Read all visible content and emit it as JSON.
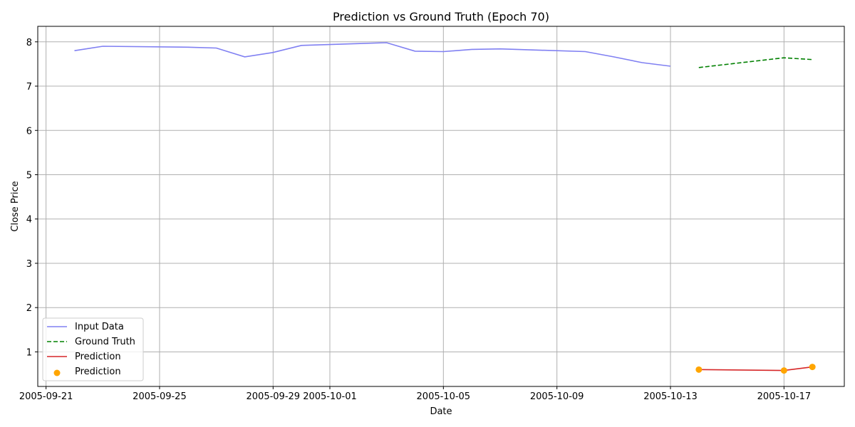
{
  "chart_data": {
    "type": "line",
    "title": "Prediction vs Ground Truth (Epoch 70)",
    "xlabel": "Date",
    "ylabel": "Close Price",
    "x_ticks": [
      "2005-09-21",
      "2005-09-25",
      "2005-09-29",
      "2005-10-01",
      "2005-10-05",
      "2005-10-09",
      "2005-10-13",
      "2005-10-17"
    ],
    "y_ticks": [
      1,
      2,
      3,
      4,
      5,
      6,
      7,
      8
    ],
    "xlim": [
      "2005-09-20T17:00",
      "2005-10-19T03:00"
    ],
    "ylim": [
      0.22,
      8.35
    ],
    "grid": true,
    "legend_position": "lower-left",
    "series": [
      {
        "name": "Input Data",
        "kind": "line",
        "color": "#8080f2",
        "style": "solid",
        "points": [
          [
            "2005-09-22",
            7.8
          ],
          [
            "2005-09-23",
            7.9
          ],
          [
            "2005-09-26",
            7.88
          ],
          [
            "2005-09-27",
            7.86
          ],
          [
            "2005-09-28",
            7.66
          ],
          [
            "2005-09-29",
            7.76
          ],
          [
            "2005-09-30",
            7.92
          ],
          [
            "2005-10-03",
            7.98
          ],
          [
            "2005-10-04",
            7.79
          ],
          [
            "2005-10-05",
            7.78
          ],
          [
            "2005-10-06",
            7.83
          ],
          [
            "2005-10-07",
            7.84
          ],
          [
            "2005-10-10",
            7.78
          ],
          [
            "2005-10-11",
            7.66
          ],
          [
            "2005-10-12",
            7.53
          ],
          [
            "2005-10-13",
            7.45
          ]
        ]
      },
      {
        "name": "Ground Truth",
        "kind": "line",
        "color": "#008000",
        "style": "dashed",
        "points": [
          [
            "2005-10-14",
            7.42
          ],
          [
            "2005-10-17",
            7.64
          ],
          [
            "2005-10-18",
            7.6
          ]
        ]
      },
      {
        "name": "Prediction",
        "kind": "line",
        "color": "#d62728",
        "style": "solid",
        "points": [
          [
            "2005-10-14",
            0.6
          ],
          [
            "2005-10-17",
            0.58
          ],
          [
            "2005-10-18",
            0.66
          ]
        ]
      },
      {
        "name": "Prediction",
        "kind": "scatter",
        "color": "#ffa500",
        "points": [
          [
            "2005-10-14",
            0.6
          ],
          [
            "2005-10-17",
            0.58
          ],
          [
            "2005-10-18",
            0.66
          ]
        ]
      }
    ]
  }
}
